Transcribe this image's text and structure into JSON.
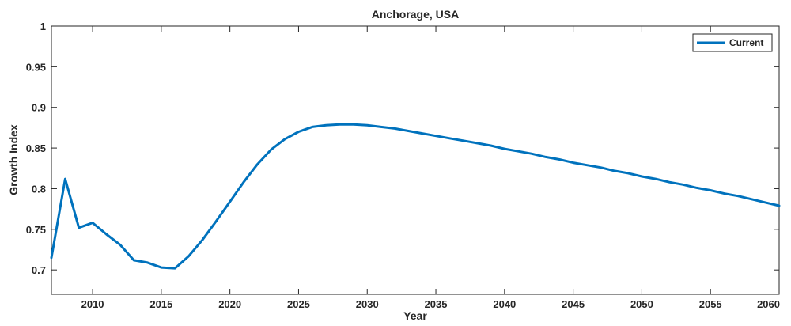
{
  "chart_data": {
    "type": "line",
    "title": "Anchorage, USA",
    "xlabel": "Year",
    "ylabel": "Growth Index",
    "xlim": [
      2007,
      2060
    ],
    "ylim": [
      0.67,
      1.0
    ],
    "xticks": [
      2010,
      2015,
      2020,
      2025,
      2030,
      2035,
      2040,
      2045,
      2050,
      2055,
      2060
    ],
    "xtick_labels": [
      "2010",
      "2015",
      "2020",
      "2025",
      "2030",
      "2035",
      "2040",
      "2045",
      "2050",
      "2055",
      "2060"
    ],
    "yticks": [
      0.7,
      0.75,
      0.8,
      0.85,
      0.9,
      0.95,
      1.0
    ],
    "ytick_labels": [
      "0.7",
      "0.75",
      "0.8",
      "0.85",
      "0.9",
      "0.95",
      "1"
    ],
    "grid": false,
    "legend_position": "top-right",
    "line_color": "#0072BD",
    "series": [
      {
        "name": "Current",
        "x": [
          2007,
          2008,
          2009,
          2010,
          2011,
          2012,
          2013,
          2014,
          2015,
          2016,
          2017,
          2018,
          2019,
          2020,
          2021,
          2022,
          2023,
          2024,
          2025,
          2026,
          2027,
          2028,
          2029,
          2030,
          2031,
          2032,
          2033,
          2034,
          2035,
          2036,
          2037,
          2038,
          2039,
          2040,
          2041,
          2042,
          2043,
          2044,
          2045,
          2046,
          2047,
          2048,
          2049,
          2050,
          2051,
          2052,
          2053,
          2054,
          2055,
          2056,
          2057,
          2058,
          2059,
          2060
        ],
        "values": [
          0.715,
          0.812,
          0.752,
          0.758,
          0.744,
          0.731,
          0.712,
          0.709,
          0.703,
          0.702,
          0.717,
          0.737,
          0.76,
          0.784,
          0.808,
          0.83,
          0.848,
          0.861,
          0.87,
          0.876,
          0.878,
          0.879,
          0.879,
          0.878,
          0.876,
          0.874,
          0.871,
          0.868,
          0.865,
          0.862,
          0.859,
          0.856,
          0.853,
          0.849,
          0.846,
          0.843,
          0.839,
          0.836,
          0.832,
          0.829,
          0.826,
          0.822,
          0.819,
          0.815,
          0.812,
          0.808,
          0.805,
          0.801,
          0.798,
          0.794,
          0.791,
          0.787,
          0.783,
          0.779
        ]
      }
    ]
  }
}
